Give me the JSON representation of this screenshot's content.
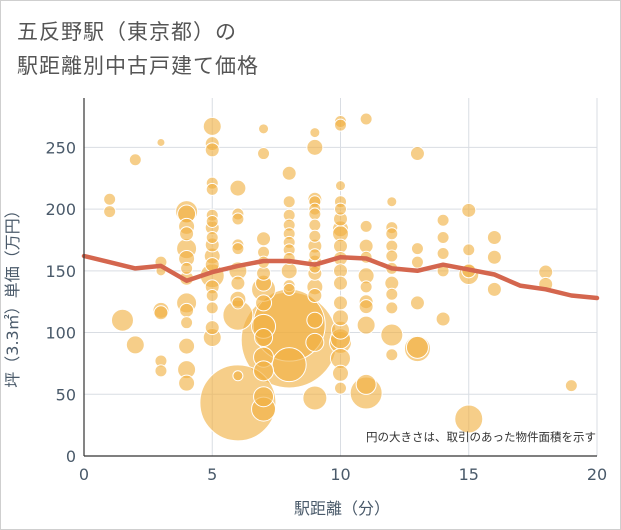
{
  "title_line1": "五反野駅（東京都）の",
  "title_line2": "駅距離別中古戸建て価格",
  "note": "円の大きさは、取引のあった物件面積を示す",
  "colors": {
    "bubble": "#f0b040",
    "bubble_stroke": "#ffffff",
    "line": "#d4664e",
    "grid": "#d9dde3",
    "axis": "#333333"
  },
  "chart_data": {
    "type": "scatter",
    "xlabel": "駅距離（分）",
    "ylabel": "坪（3.3㎡）単価（万円）",
    "xlim": [
      0,
      20
    ],
    "ylim": [
      0,
      290
    ],
    "xticks": [
      0,
      5,
      10,
      15,
      20
    ],
    "yticks": [
      0,
      50,
      100,
      150,
      200,
      250
    ],
    "grid": true,
    "bubbles": [
      {
        "x": 1,
        "y": 208,
        "s": 6
      },
      {
        "x": 1,
        "y": 198,
        "s": 6
      },
      {
        "x": 2,
        "y": 240,
        "s": 6
      },
      {
        "x": 1.5,
        "y": 110,
        "s": 11
      },
      {
        "x": 2,
        "y": 90,
        "s": 9
      },
      {
        "x": 3,
        "y": 254,
        "s": 4
      },
      {
        "x": 3,
        "y": 157,
        "s": 6
      },
      {
        "x": 3,
        "y": 150,
        "s": 5
      },
      {
        "x": 3,
        "y": 118,
        "s": 8
      },
      {
        "x": 3,
        "y": 116,
        "s": 7
      },
      {
        "x": 3,
        "y": 77,
        "s": 6
      },
      {
        "x": 3,
        "y": 69,
        "s": 6
      },
      {
        "x": 4,
        "y": 198,
        "s": 11
      },
      {
        "x": 4,
        "y": 196,
        "s": 9
      },
      {
        "x": 4,
        "y": 186,
        "s": 8
      },
      {
        "x": 4,
        "y": 180,
        "s": 7
      },
      {
        "x": 4,
        "y": 168,
        "s": 10
      },
      {
        "x": 4,
        "y": 160,
        "s": 8
      },
      {
        "x": 4,
        "y": 152,
        "s": 6
      },
      {
        "x": 4,
        "y": 144,
        "s": 7
      },
      {
        "x": 4,
        "y": 124,
        "s": 10
      },
      {
        "x": 4,
        "y": 118,
        "s": 7
      },
      {
        "x": 4,
        "y": 108,
        "s": 6
      },
      {
        "x": 4,
        "y": 89,
        "s": 8
      },
      {
        "x": 4,
        "y": 70,
        "s": 9
      },
      {
        "x": 4,
        "y": 59,
        "s": 8
      },
      {
        "x": 5,
        "y": 267,
        "s": 9
      },
      {
        "x": 5,
        "y": 253,
        "s": 7
      },
      {
        "x": 5,
        "y": 248,
        "s": 7
      },
      {
        "x": 5,
        "y": 221,
        "s": 6
      },
      {
        "x": 5,
        "y": 216,
        "s": 6
      },
      {
        "x": 5,
        "y": 195,
        "s": 6
      },
      {
        "x": 5,
        "y": 190,
        "s": 6
      },
      {
        "x": 5,
        "y": 185,
        "s": 7
      },
      {
        "x": 5,
        "y": 177,
        "s": 6
      },
      {
        "x": 5,
        "y": 171,
        "s": 7
      },
      {
        "x": 5,
        "y": 162,
        "s": 8
      },
      {
        "x": 5,
        "y": 155,
        "s": 7
      },
      {
        "x": 5,
        "y": 146,
        "s": 12
      },
      {
        "x": 5,
        "y": 137,
        "s": 7
      },
      {
        "x": 5,
        "y": 130,
        "s": 6
      },
      {
        "x": 5,
        "y": 120,
        "s": 6
      },
      {
        "x": 5,
        "y": 104,
        "s": 7
      },
      {
        "x": 5,
        "y": 96,
        "s": 9
      },
      {
        "x": 6,
        "y": 217,
        "s": 8
      },
      {
        "x": 6,
        "y": 196,
        "s": 6
      },
      {
        "x": 6,
        "y": 192,
        "s": 6
      },
      {
        "x": 6,
        "y": 171,
        "s": 6
      },
      {
        "x": 6,
        "y": 168,
        "s": 6
      },
      {
        "x": 6,
        "y": 150,
        "s": 9
      },
      {
        "x": 6,
        "y": 140,
        "s": 7
      },
      {
        "x": 6,
        "y": 127,
        "s": 8
      },
      {
        "x": 6,
        "y": 124,
        "s": 6
      },
      {
        "x": 6,
        "y": 114,
        "s": 15
      },
      {
        "x": 6,
        "y": 65,
        "s": 5
      },
      {
        "x": 6,
        "y": 43,
        "s": 38
      },
      {
        "x": 7,
        "y": 265,
        "s": 5
      },
      {
        "x": 7,
        "y": 245,
        "s": 6
      },
      {
        "x": 7,
        "y": 176,
        "s": 7
      },
      {
        "x": 7,
        "y": 165,
        "s": 6
      },
      {
        "x": 7,
        "y": 157,
        "s": 6
      },
      {
        "x": 7,
        "y": 148,
        "s": 7
      },
      {
        "x": 7,
        "y": 140,
        "s": 8
      },
      {
        "x": 7,
        "y": 135,
        "s": 12
      },
      {
        "x": 7,
        "y": 124,
        "s": 8
      },
      {
        "x": 7,
        "y": 105,
        "s": 12
      },
      {
        "x": 7,
        "y": 96,
        "s": 9
      },
      {
        "x": 7,
        "y": 80,
        "s": 10
      },
      {
        "x": 7,
        "y": 69,
        "s": 10
      },
      {
        "x": 7,
        "y": 48,
        "s": 10
      },
      {
        "x": 7,
        "y": 38,
        "s": 12
      },
      {
        "x": 8,
        "y": 229,
        "s": 7
      },
      {
        "x": 8,
        "y": 206,
        "s": 6
      },
      {
        "x": 8,
        "y": 195,
        "s": 6
      },
      {
        "x": 8,
        "y": 187,
        "s": 6
      },
      {
        "x": 8,
        "y": 180,
        "s": 6
      },
      {
        "x": 8,
        "y": 173,
        "s": 6
      },
      {
        "x": 8,
        "y": 167,
        "s": 6
      },
      {
        "x": 8,
        "y": 160,
        "s": 6
      },
      {
        "x": 8,
        "y": 150,
        "s": 8
      },
      {
        "x": 8,
        "y": 138,
        "s": 6
      },
      {
        "x": 8,
        "y": 135,
        "s": 6
      },
      {
        "x": 8,
        "y": 106,
        "s": 36
      },
      {
        "x": 8,
        "y": 94,
        "s": 48
      },
      {
        "x": 8,
        "y": 74,
        "s": 17
      },
      {
        "x": 9,
        "y": 262,
        "s": 5
      },
      {
        "x": 9,
        "y": 250,
        "s": 8
      },
      {
        "x": 9,
        "y": 208,
        "s": 7
      },
      {
        "x": 9,
        "y": 206,
        "s": 6
      },
      {
        "x": 9,
        "y": 200,
        "s": 6
      },
      {
        "x": 9,
        "y": 196,
        "s": 6
      },
      {
        "x": 9,
        "y": 187,
        "s": 6
      },
      {
        "x": 9,
        "y": 178,
        "s": 6
      },
      {
        "x": 9,
        "y": 170,
        "s": 7
      },
      {
        "x": 9,
        "y": 163,
        "s": 6
      },
      {
        "x": 9,
        "y": 157,
        "s": 7
      },
      {
        "x": 9,
        "y": 153,
        "s": 6
      },
      {
        "x": 9,
        "y": 148,
        "s": 7
      },
      {
        "x": 9,
        "y": 137,
        "s": 8
      },
      {
        "x": 9,
        "y": 130,
        "s": 7
      },
      {
        "x": 9,
        "y": 110,
        "s": 8
      },
      {
        "x": 9,
        "y": 92,
        "s": 9
      },
      {
        "x": 9,
        "y": 47,
        "s": 12
      },
      {
        "x": 10,
        "y": 271,
        "s": 6
      },
      {
        "x": 10,
        "y": 268,
        "s": 6
      },
      {
        "x": 10,
        "y": 219,
        "s": 5
      },
      {
        "x": 10,
        "y": 206,
        "s": 6
      },
      {
        "x": 10,
        "y": 200,
        "s": 6
      },
      {
        "x": 10,
        "y": 192,
        "s": 7
      },
      {
        "x": 10,
        "y": 184,
        "s": 8
      },
      {
        "x": 10,
        "y": 180,
        "s": 8
      },
      {
        "x": 10,
        "y": 170,
        "s": 7
      },
      {
        "x": 10,
        "y": 160,
        "s": 7
      },
      {
        "x": 10,
        "y": 150,
        "s": 7
      },
      {
        "x": 10,
        "y": 140,
        "s": 7
      },
      {
        "x": 10,
        "y": 124,
        "s": 7
      },
      {
        "x": 10,
        "y": 112,
        "s": 8
      },
      {
        "x": 10,
        "y": 102,
        "s": 9
      },
      {
        "x": 10,
        "y": 95,
        "s": 10
      },
      {
        "x": 10,
        "y": 92,
        "s": 11
      },
      {
        "x": 10,
        "y": 79,
        "s": 10
      },
      {
        "x": 10,
        "y": 67,
        "s": 8
      },
      {
        "x": 10,
        "y": 55,
        "s": 6
      },
      {
        "x": 11,
        "y": 273,
        "s": 6
      },
      {
        "x": 11,
        "y": 186,
        "s": 6
      },
      {
        "x": 11,
        "y": 170,
        "s": 7
      },
      {
        "x": 11,
        "y": 161,
        "s": 6
      },
      {
        "x": 11,
        "y": 146,
        "s": 8
      },
      {
        "x": 11,
        "y": 137,
        "s": 6
      },
      {
        "x": 11,
        "y": 125,
        "s": 7
      },
      {
        "x": 11,
        "y": 121,
        "s": 7
      },
      {
        "x": 11,
        "y": 106,
        "s": 9
      },
      {
        "x": 11,
        "y": 58,
        "s": 10
      },
      {
        "x": 11,
        "y": 51,
        "s": 16
      },
      {
        "x": 12,
        "y": 206,
        "s": 5
      },
      {
        "x": 12,
        "y": 185,
        "s": 6
      },
      {
        "x": 12,
        "y": 180,
        "s": 6
      },
      {
        "x": 12,
        "y": 170,
        "s": 6
      },
      {
        "x": 12,
        "y": 162,
        "s": 6
      },
      {
        "x": 12,
        "y": 152,
        "s": 6
      },
      {
        "x": 12,
        "y": 140,
        "s": 7
      },
      {
        "x": 12,
        "y": 131,
        "s": 6
      },
      {
        "x": 12,
        "y": 120,
        "s": 6
      },
      {
        "x": 12,
        "y": 98,
        "s": 11
      },
      {
        "x": 12,
        "y": 82,
        "s": 6
      },
      {
        "x": 13,
        "y": 245,
        "s": 7
      },
      {
        "x": 13,
        "y": 168,
        "s": 6
      },
      {
        "x": 13,
        "y": 157,
        "s": 6
      },
      {
        "x": 13,
        "y": 124,
        "s": 7
      },
      {
        "x": 13,
        "y": 88,
        "s": 11
      },
      {
        "x": 13,
        "y": 87,
        "s": 13
      },
      {
        "x": 14,
        "y": 191,
        "s": 6
      },
      {
        "x": 14,
        "y": 177,
        "s": 6
      },
      {
        "x": 14,
        "y": 164,
        "s": 6
      },
      {
        "x": 14,
        "y": 150,
        "s": 6
      },
      {
        "x": 14,
        "y": 111,
        "s": 7
      },
      {
        "x": 15,
        "y": 199,
        "s": 7
      },
      {
        "x": 15,
        "y": 167,
        "s": 6
      },
      {
        "x": 15,
        "y": 150,
        "s": 7
      },
      {
        "x": 15,
        "y": 147,
        "s": 10
      },
      {
        "x": 15,
        "y": 30,
        "s": 14
      },
      {
        "x": 16,
        "y": 177,
        "s": 7
      },
      {
        "x": 16,
        "y": 161,
        "s": 7
      },
      {
        "x": 16,
        "y": 135,
        "s": 7
      },
      {
        "x": 18,
        "y": 149,
        "s": 7
      },
      {
        "x": 18,
        "y": 139,
        "s": 7
      },
      {
        "x": 19,
        "y": 57,
        "s": 6
      }
    ],
    "trend": [
      {
        "x": 0,
        "y": 162
      },
      {
        "x": 1,
        "y": 157
      },
      {
        "x": 2,
        "y": 152
      },
      {
        "x": 3,
        "y": 154
      },
      {
        "x": 4,
        "y": 142
      },
      {
        "x": 5,
        "y": 149
      },
      {
        "x": 6,
        "y": 154
      },
      {
        "x": 7,
        "y": 158
      },
      {
        "x": 8,
        "y": 158
      },
      {
        "x": 9,
        "y": 155
      },
      {
        "x": 10,
        "y": 161
      },
      {
        "x": 11,
        "y": 160
      },
      {
        "x": 12,
        "y": 152
      },
      {
        "x": 13,
        "y": 150
      },
      {
        "x": 14,
        "y": 155
      },
      {
        "x": 15,
        "y": 151
      },
      {
        "x": 16,
        "y": 147
      },
      {
        "x": 17,
        "y": 138
      },
      {
        "x": 18,
        "y": 135
      },
      {
        "x": 19,
        "y": 130
      },
      {
        "x": 20,
        "y": 128
      }
    ]
  }
}
